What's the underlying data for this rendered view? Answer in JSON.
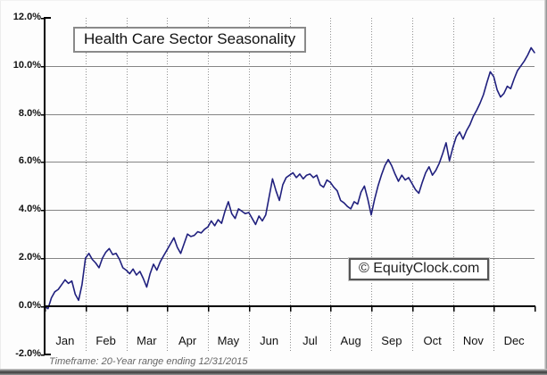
{
  "title": "Health Care Sector Seasonality",
  "watermark": "© EquityClock.com",
  "footer": "Timeframe: 20-Year range ending 12/31/2015",
  "chart_data": {
    "type": "line",
    "title": "Health Care Sector Seasonality",
    "xlabel": "",
    "ylabel": "",
    "ylim": [
      -2,
      12
    ],
    "legend_position": "none",
    "grid": {
      "horizontal": "solid",
      "vertical": "dotted"
    },
    "colors": {
      "line": "#20207e",
      "grid_solid": "#858585",
      "grid_dotted": "#909090",
      "axis": "#000000"
    },
    "x_categories": [
      "Jan",
      "Feb",
      "Mar",
      "Apr",
      "May",
      "Jun",
      "Jul",
      "Aug",
      "Sep",
      "Oct",
      "Nov",
      "Dec"
    ],
    "y_axis": {
      "ticks": [
        {
          "label": "12.0%",
          "value": 12,
          "grid": false
        },
        {
          "label": "10.0%",
          "value": 10,
          "grid": true
        },
        {
          "label": "8.0%",
          "value": 8,
          "grid": true
        },
        {
          "label": "6.0%",
          "value": 6,
          "grid": true
        },
        {
          "label": "4.0%",
          "value": 4,
          "grid": true
        },
        {
          "label": "2.0%",
          "value": 2,
          "grid": true
        },
        {
          "label": "0.0%",
          "value": 0,
          "grid": false
        },
        {
          "label": "-2.0%",
          "value": -2,
          "grid": false
        }
      ]
    },
    "series": [
      {
        "name": "Health Care Sector average cumulative return (%), 20-year seasonality",
        "values": [
          0.0,
          -0.1,
          0.35,
          0.6,
          0.7,
          0.9,
          1.1,
          0.95,
          1.05,
          0.5,
          0.25,
          0.9,
          2.0,
          2.2,
          1.95,
          1.8,
          1.6,
          2.0,
          2.25,
          2.4,
          2.15,
          2.2,
          1.95,
          1.6,
          1.5,
          1.35,
          1.55,
          1.3,
          1.45,
          1.15,
          0.8,
          1.35,
          1.75,
          1.5,
          1.85,
          2.1,
          2.35,
          2.6,
          2.85,
          2.45,
          2.2,
          2.6,
          3.0,
          2.9,
          2.95,
          3.1,
          3.05,
          3.2,
          3.3,
          3.55,
          3.35,
          3.6,
          3.45,
          3.95,
          4.35,
          3.85,
          3.65,
          4.05,
          3.95,
          3.85,
          3.9,
          3.65,
          3.4,
          3.75,
          3.55,
          3.8,
          4.55,
          5.3,
          4.8,
          4.4,
          5.05,
          5.35,
          5.45,
          5.55,
          5.35,
          5.5,
          5.3,
          5.45,
          5.5,
          5.35,
          5.45,
          5.05,
          4.95,
          5.25,
          5.15,
          4.95,
          4.8,
          4.4,
          4.3,
          4.15,
          4.05,
          4.35,
          4.25,
          4.75,
          5.0,
          4.45,
          3.8,
          4.45,
          5.0,
          5.45,
          5.85,
          6.1,
          5.85,
          5.5,
          5.2,
          5.45,
          5.25,
          5.35,
          5.1,
          4.85,
          4.7,
          5.15,
          5.55,
          5.8,
          5.45,
          5.65,
          5.95,
          6.35,
          6.8,
          6.05,
          6.6,
          7.05,
          7.25,
          6.95,
          7.3,
          7.55,
          7.9,
          8.15,
          8.45,
          8.8,
          9.3,
          9.75,
          9.55,
          9.0,
          8.7,
          8.85,
          9.15,
          9.05,
          9.45,
          9.8,
          10.0,
          10.2,
          10.45,
          10.75,
          10.55
        ]
      }
    ]
  }
}
